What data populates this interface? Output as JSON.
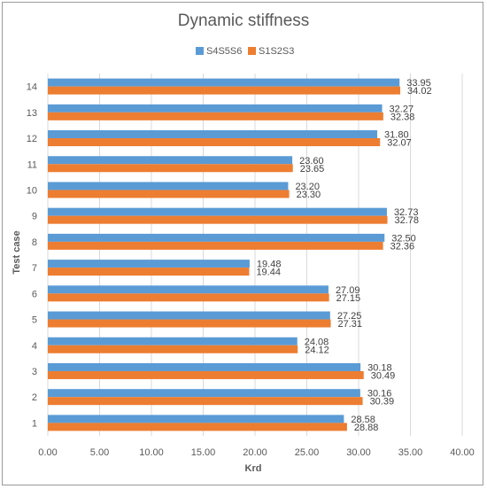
{
  "chart_data": {
    "type": "bar",
    "orientation": "horizontal",
    "title": "Dynamic stiffness",
    "xlabel": "Krd",
    "ylabel": "Test case",
    "categories": [
      "1",
      "2",
      "3",
      "4",
      "5",
      "6",
      "7",
      "8",
      "9",
      "10",
      "11",
      "12",
      "13",
      "14"
    ],
    "series": [
      {
        "name": "S4S5S6",
        "color": "#5b9bd5",
        "values": [
          28.58,
          30.16,
          30.18,
          24.08,
          27.25,
          27.09,
          19.48,
          32.5,
          32.73,
          23.2,
          23.6,
          31.8,
          32.27,
          33.95
        ],
        "labels": [
          "28.58",
          "30.16",
          "30.18",
          "24.08",
          "27.25",
          "27.09",
          "19.48",
          "32.50",
          "32.73",
          "23.20",
          "23.60",
          "31.80",
          "32.27",
          "33.95"
        ]
      },
      {
        "name": "S1S2S3",
        "color": "#ed7d31",
        "values": [
          28.88,
          30.39,
          30.49,
          24.12,
          27.31,
          27.15,
          19.44,
          32.36,
          32.78,
          23.3,
          23.65,
          32.07,
          32.38,
          34.02
        ],
        "labels": [
          "28.88",
          "30.39",
          "30.49",
          "24.12",
          "27.31",
          "27.15",
          "19.44",
          "32.36",
          "32.78",
          "23.30",
          "23.65",
          "32.07",
          "32.38",
          "34.02"
        ]
      }
    ],
    "xlim": [
      0,
      40
    ],
    "xticks": [
      "0.00",
      "5.00",
      "10.00",
      "15.00",
      "20.00",
      "25.00",
      "30.00",
      "35.00",
      "40.00"
    ],
    "grid": true,
    "legend_position": "top"
  }
}
